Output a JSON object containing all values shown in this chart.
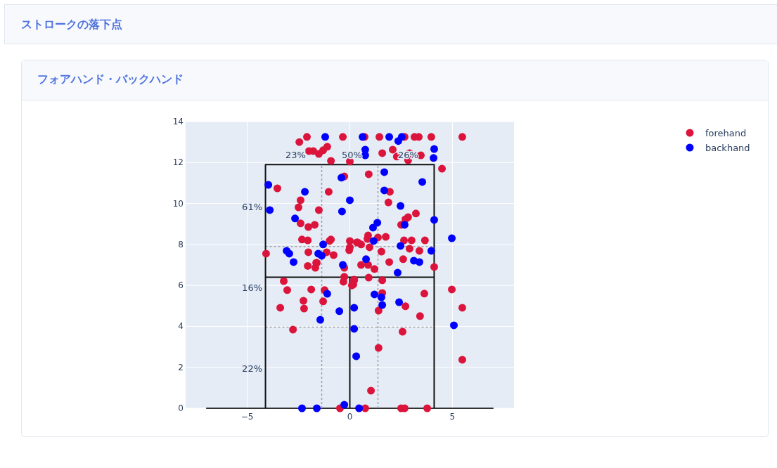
{
  "chart_data": {
    "type": "scatter",
    "title": "ストロークの落下点",
    "subtitle": "フォアハンド・バックハンド",
    "xlim": [
      -8,
      8
    ],
    "ylim": [
      0,
      14
    ],
    "xticks": [
      -5,
      0,
      5
    ],
    "yticks": [
      0,
      2,
      4,
      6,
      8,
      10,
      12,
      14
    ],
    "grid": true,
    "legend": "top right",
    "marker": "circle",
    "annotations": [
      "23%",
      "50%",
      "26%",
      "61%",
      "16%",
      "22%"
    ],
    "series": [
      {
        "type": "line",
        "marker": "none",
        "color": "#333333",
        "line_style": "solid",
        "x": [
          -7,
          7
        ],
        "values": [
          0,
          0
        ]
      },
      {
        "type": "line",
        "marker": "none",
        "color": "#a0a0a0",
        "line_style": "dashed",
        "x": [
          -1.37,
          -1.37
        ],
        "values": [
          0,
          11.9
        ]
      },
      {
        "type": "line",
        "marker": "none",
        "color": "#a0a0a0",
        "line_style": "dashed",
        "x": [
          1.37,
          1.37
        ],
        "values": [
          0,
          11.9
        ]
      },
      {
        "type": "line",
        "marker": "none",
        "color": "#a0a0a0",
        "line_style": "dashed",
        "x": [
          -4.11,
          4.11
        ],
        "values": [
          7.9,
          7.9
        ]
      },
      {
        "type": "line",
        "marker": "none",
        "color": "#a0a0a0",
        "line_style": "dashed",
        "x": [
          -4.11,
          4.11
        ],
        "values": [
          3.96,
          3.96
        ]
      },
      {
        "type": "line",
        "marker": "none",
        "color": "#111111",
        "line_style": "solid",
        "x": [
          -4.11,
          -4.11,
          4.11,
          4.11
        ],
        "values": [
          0,
          11.9,
          11.9,
          0
        ]
      },
      {
        "type": "line",
        "marker": "none",
        "color": "#111111",
        "line_style": "solid",
        "x": [
          -4.11,
          4.11
        ],
        "values": [
          6.4,
          6.4
        ]
      },
      {
        "type": "line",
        "marker": "none",
        "color": "#111111",
        "line_style": "solid",
        "x": [
          0,
          0
        ],
        "values": [
          0,
          6.4
        ]
      },
      {
        "name": "forehand",
        "color": "#dc143c",
        "x": [
          -2.46,
          -2.09,
          -0.34,
          0.72,
          1.44,
          2.67,
          3.15,
          3.36,
          3.97,
          5.48,
          -1.99,
          -1.78,
          -1.51,
          -1.3,
          -1.1,
          -0.92,
          0,
          1.58,
          2.09,
          2.29,
          2.91,
          2.84,
          3.46,
          4.49,
          -0.27,
          -3.53,
          -1.03,
          -2.4,
          -2.5,
          -1.51,
          -2.4,
          -2.02,
          -1.71,
          -2.33,
          -2.05,
          -0.99,
          -0.92,
          0,
          0,
          0.34,
          -4.08,
          -2.02,
          -1.13,
          -0.79,
          -0.03,
          -1.61,
          -2.05,
          0.92,
          1.95,
          1.88,
          3.22,
          2.84,
          2.71,
          2.5,
          1.75,
          1.37,
          0.89,
          0.86,
          0.38,
          0.55,
          0.96,
          2.64,
          3.01,
          3.66,
          2.91,
          3.39,
          1.54,
          1.92,
          2.6,
          4.11,
          0.55,
          0.89,
          1.2,
          0.92,
          0.21,
          0.1,
          1.58,
          4.97,
          3.63,
          1.58,
          2.71,
          5.48,
          1.4,
          3.42,
          2.57,
          1.4,
          5.48,
          1.03,
          0.75,
          2.5,
          2.67,
          3.77,
          -1.64,
          -1.68,
          -0.27,
          -0.27,
          -0.31,
          0.21,
          0.17,
          -3.22,
          -3.05,
          -1.88,
          -1.23,
          -1.3,
          -3.39,
          -2.23,
          -2.26,
          -2.77,
          -0.48
        ],
        "values": [
          13.0,
          13.25,
          13.25,
          13.25,
          13.25,
          13.25,
          13.25,
          13.25,
          13.25,
          13.25,
          12.56,
          12.56,
          12.42,
          12.6,
          12.77,
          12.08,
          12.05,
          12.46,
          12.63,
          12.29,
          12.46,
          12.11,
          12.35,
          11.7,
          11.32,
          10.74,
          10.57,
          10.16,
          9.81,
          9.68,
          9.03,
          8.85,
          8.96,
          8.24,
          8.2,
          8.17,
          8.24,
          8.17,
          7.86,
          8.1,
          7.55,
          7.62,
          7.62,
          7.48,
          7.72,
          7.1,
          6.95,
          11.43,
          10.57,
          10.05,
          9.51,
          9.33,
          9.23,
          8.96,
          8.37,
          8.34,
          8.44,
          8.27,
          8.1,
          8.0,
          7.86,
          8.2,
          8.2,
          8.2,
          7.79,
          7.69,
          7.65,
          7.14,
          7.28,
          6.9,
          7.0,
          7.0,
          6.8,
          6.38,
          6.25,
          6.0,
          6.25,
          5.8,
          5.6,
          5.63,
          4.98,
          4.91,
          4.77,
          4.5,
          3.74,
          2.95,
          2.37,
          0.86,
          0,
          0,
          0,
          0,
          7.1,
          6.86,
          6.86,
          6.42,
          6.18,
          6.28,
          6.04,
          6.21,
          5.77,
          5.8,
          5.77,
          5.22,
          4.91,
          4.87,
          5.25,
          3.84,
          0
        ]
      },
      {
        "name": "backhand",
        "color": "#0000ff",
        "x": [
          -1.2,
          0.62,
          1.92,
          2.36,
          2.53,
          0.75,
          0.75,
          4.11,
          4.08,
          -0.41,
          -3.97,
          -2.19,
          0,
          -3.9,
          -0.38,
          -2.67,
          -1.3,
          -3.08,
          -2.95,
          -1.54,
          -1.37,
          -2.74,
          -0.34,
          1.68,
          3.53,
          1.68,
          2.47,
          2.67,
          4.11,
          1.34,
          1.13,
          1.16,
          4.97,
          2.47,
          3.97,
          0.79,
          3.12,
          3.39,
          2.33,
          1.2,
          1.54,
          1.58,
          2.4,
          0.21,
          5.07,
          0.21,
          0.31,
          0.45,
          -1.1,
          -0.51,
          -1.44,
          -2.33,
          -1.61,
          -0.27
        ],
        "values": [
          13.25,
          13.25,
          13.25,
          13.05,
          13.25,
          12.63,
          12.35,
          12.66,
          12.22,
          11.26,
          10.91,
          10.57,
          10.16,
          9.68,
          9.61,
          9.27,
          8.0,
          7.69,
          7.55,
          7.55,
          7.45,
          7.14,
          7.0,
          11.53,
          11.05,
          10.64,
          9.88,
          8.96,
          9.2,
          9.06,
          8.82,
          8.17,
          8.3,
          7.93,
          7.69,
          7.28,
          7.21,
          7.14,
          6.62,
          5.56,
          5.42,
          5.04,
          5.18,
          4.91,
          4.05,
          3.88,
          2.54,
          0,
          5.59,
          4.74,
          4.32,
          0,
          0,
          0.17
        ]
      }
    ]
  }
}
